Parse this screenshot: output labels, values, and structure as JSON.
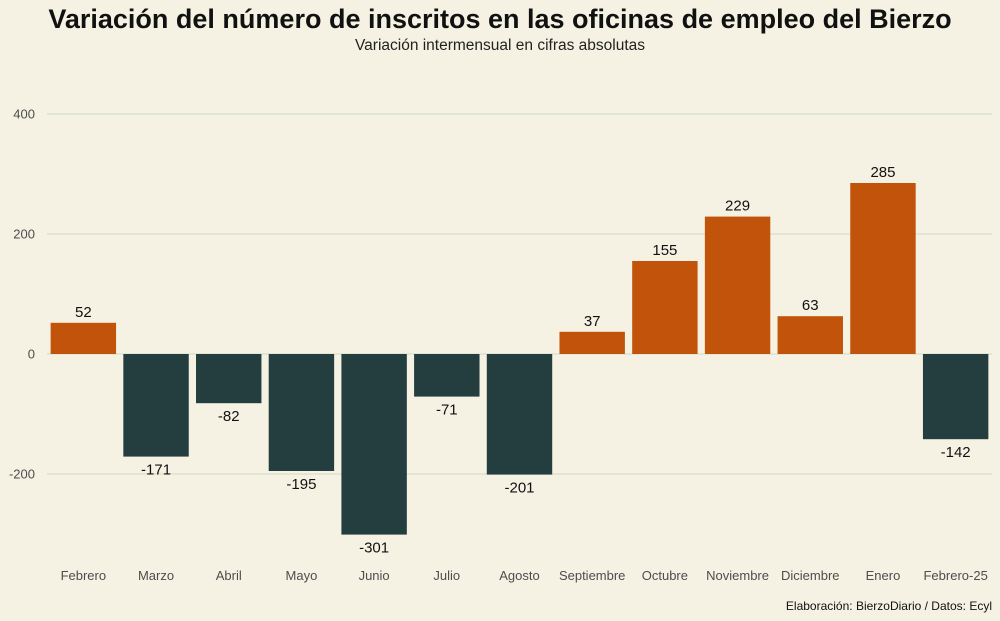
{
  "chart_data": {
    "type": "bar",
    "title": "Variación del número de inscritos en las oficinas de empleo del Bierzo",
    "subtitle": "Variación intermensual en cifras absolutas",
    "caption": "Elaboración: BierzoDiario / Datos: Ecyl",
    "xlabel": "",
    "ylabel": "",
    "categories": [
      "Febrero",
      "Marzo",
      "Abril",
      "Mayo",
      "Junio",
      "Julio",
      "Agosto",
      "Septiembre",
      "Octubre",
      "Noviembre",
      "Diciembre",
      "Enero",
      "Febrero-25"
    ],
    "values": [
      52,
      -171,
      -82,
      -195,
      -301,
      -71,
      -201,
      37,
      155,
      229,
      63,
      285,
      -142
    ],
    "ylim": [
      -350,
      450
    ],
    "yticks": [
      -200,
      0,
      200,
      400
    ],
    "grid": true,
    "legend": "none",
    "colors": {
      "positive": "#c1540a",
      "negative": "#243d3e",
      "background": "#f5f2e4",
      "grid": "#cfd9c3"
    }
  }
}
